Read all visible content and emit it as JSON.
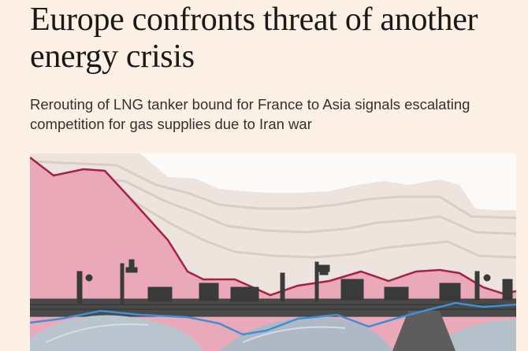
{
  "article": {
    "headline": "Europe confronts threat of another energy crisis",
    "standfirst": "Rerouting of LNG tanker bound for France to Asia signals escalating competition for gas supplies due to Iran war"
  },
  "hero_image": {
    "description_icon": "lng-terminal-collage-icon",
    "colors": {
      "backdrop": "#f3e8df",
      "band": "#e6ddd6",
      "band_line": "#d8cfc8",
      "pink_fill": "#e9a9b9",
      "crimson_line": "#a62144",
      "blue_line": "#3f8fd6",
      "tank": "#b9c4cf",
      "structure": "#3a3a3a"
    }
  }
}
